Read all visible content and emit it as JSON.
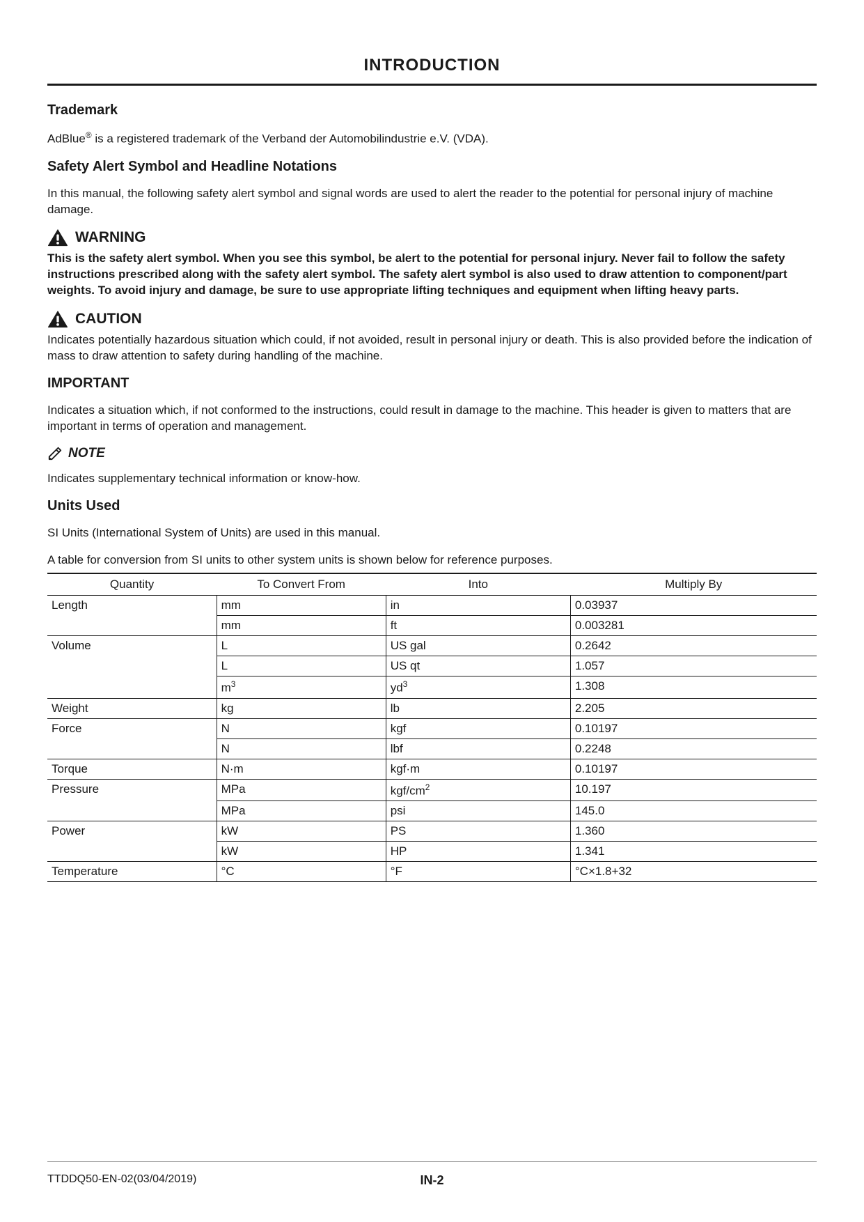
{
  "page": {
    "title": "INTRODUCTION",
    "footer_doc": "TTDDQ50-EN-02(03/04/2019)",
    "footer_pagenum": "IN-2"
  },
  "sections": {
    "trademark": {
      "heading": "Trademark",
      "body_pre": "AdBlue",
      "body_post": " is a registered trademark of the Verband der Automobilindustrie e.V. (VDA)."
    },
    "safety": {
      "heading": "Safety Alert Symbol and Headline Notations",
      "intro": "In this manual, the following safety alert symbol and signal words are used to alert the reader to the potential for personal injury of machine damage.",
      "warning_label": "WARNING",
      "warning_body": "This is the safety alert symbol. When you see this symbol, be alert to the potential for personal injury. Never fail to follow the safety instructions prescribed along with the safety alert symbol. The safety alert symbol is also used to draw attention to component/part weights. To avoid injury and damage, be sure to use appropriate lifting techniques and equipment when lifting heavy parts.",
      "caution_label": "CAUTION",
      "caution_body": "Indicates potentially hazardous situation which could, if not avoided, result in personal injury or death. This is also provided before the indication of mass to draw attention to safety during handling of the machine.",
      "important_label": "IMPORTANT",
      "important_body": "Indicates a situation which, if not conformed to the instructions, could result in damage to the machine. This header is given to matters that are important in terms of operation and management.",
      "note_label": "NOTE",
      "note_body": "Indicates supplementary technical information or know-how."
    },
    "units": {
      "heading": "Units Used",
      "intro1": "SI Units (International System of Units) are used in this manual.",
      "intro2": "A table for conversion from SI units to other system units is shown below for reference purposes."
    }
  },
  "conversion_table": {
    "columns": [
      "Quantity",
      "To Convert From",
      "Into",
      "Multiply By"
    ],
    "groups": [
      {
        "qty": "Length",
        "rows": [
          {
            "from": "mm",
            "into": "in",
            "mult": "0.03937"
          },
          {
            "from": "mm",
            "into": "ft",
            "mult": "0.003281"
          }
        ]
      },
      {
        "qty": "Volume",
        "rows": [
          {
            "from": "L",
            "into": "US gal",
            "mult": "0.2642"
          },
          {
            "from": "L",
            "into": "US qt",
            "mult": "1.057"
          },
          {
            "from_html": "m<sup>3</sup>",
            "into_html": "yd<sup>3</sup>",
            "mult": "1.308"
          }
        ]
      },
      {
        "qty": "Weight",
        "rows": [
          {
            "from": "kg",
            "into": "lb",
            "mult": "2.205"
          }
        ]
      },
      {
        "qty": "Force",
        "rows": [
          {
            "from": "N",
            "into": "kgf",
            "mult": "0.10197"
          },
          {
            "from": "N",
            "into": "lbf",
            "mult": "0.2248"
          }
        ]
      },
      {
        "qty": "Torque",
        "rows": [
          {
            "from": "N·m",
            "into": "kgf·m",
            "mult": "0.10197"
          }
        ]
      },
      {
        "qty": "Pressure",
        "rows": [
          {
            "from": "MPa",
            "into_html": "kgf/cm<sup>2</sup>",
            "mult": "10.197"
          },
          {
            "from": "MPa",
            "into": "psi",
            "mult": "145.0"
          }
        ]
      },
      {
        "qty": "Power",
        "rows": [
          {
            "from": "kW",
            "into": "PS",
            "mult": "1.360"
          },
          {
            "from": "kW",
            "into": "HP",
            "mult": "1.341"
          }
        ]
      },
      {
        "qty": "Temperature",
        "rows": [
          {
            "from": "°C",
            "into": "°F",
            "mult": "°C×1.8+32"
          }
        ]
      }
    ]
  },
  "styling": {
    "text_color": "#1a1a1a",
    "rule_color": "#1a1a1a",
    "footer_rule_color": "#888888",
    "body_fontsize": 17,
    "h2_fontsize": 20,
    "title_fontsize": 24
  }
}
